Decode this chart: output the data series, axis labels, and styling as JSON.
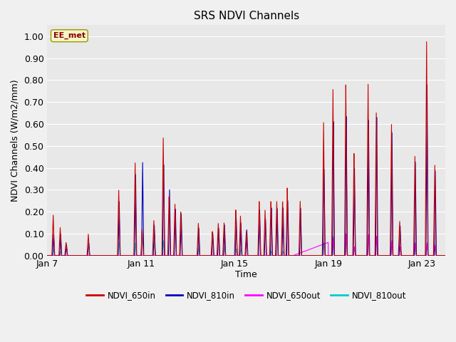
{
  "title": "SRS NDVI Channels",
  "xlabel": "Time",
  "ylabel": "NDVI Channels (W/m2/mm)",
  "ylim": [
    0.0,
    1.05
  ],
  "xlim": [
    0,
    17
  ],
  "annotation": "EE_met",
  "fig_facecolor": "#f0f0f0",
  "ax_facecolor": "#e8e8e8",
  "grid_color": "#ffffff",
  "series": {
    "NDVI_650in": {
      "color": "#cc0000",
      "lw": 0.8
    },
    "NDVI_810in": {
      "color": "#0000bb",
      "lw": 0.8
    },
    "NDVI_650out": {
      "color": "#ff00ff",
      "lw": 0.8
    },
    "NDVI_810out": {
      "color": "#00cccc",
      "lw": 0.8
    }
  },
  "xtick_positions": [
    0,
    4,
    8,
    12,
    16
  ],
  "xtick_labels": [
    "Jan 7",
    "Jan 11",
    "Jan 15",
    "Jan 19",
    "Jan 23"
  ],
  "ytick_positions": [
    0.0,
    0.1,
    0.2,
    0.3,
    0.4,
    0.5,
    0.6,
    0.7,
    0.8,
    0.9,
    1.0
  ]
}
